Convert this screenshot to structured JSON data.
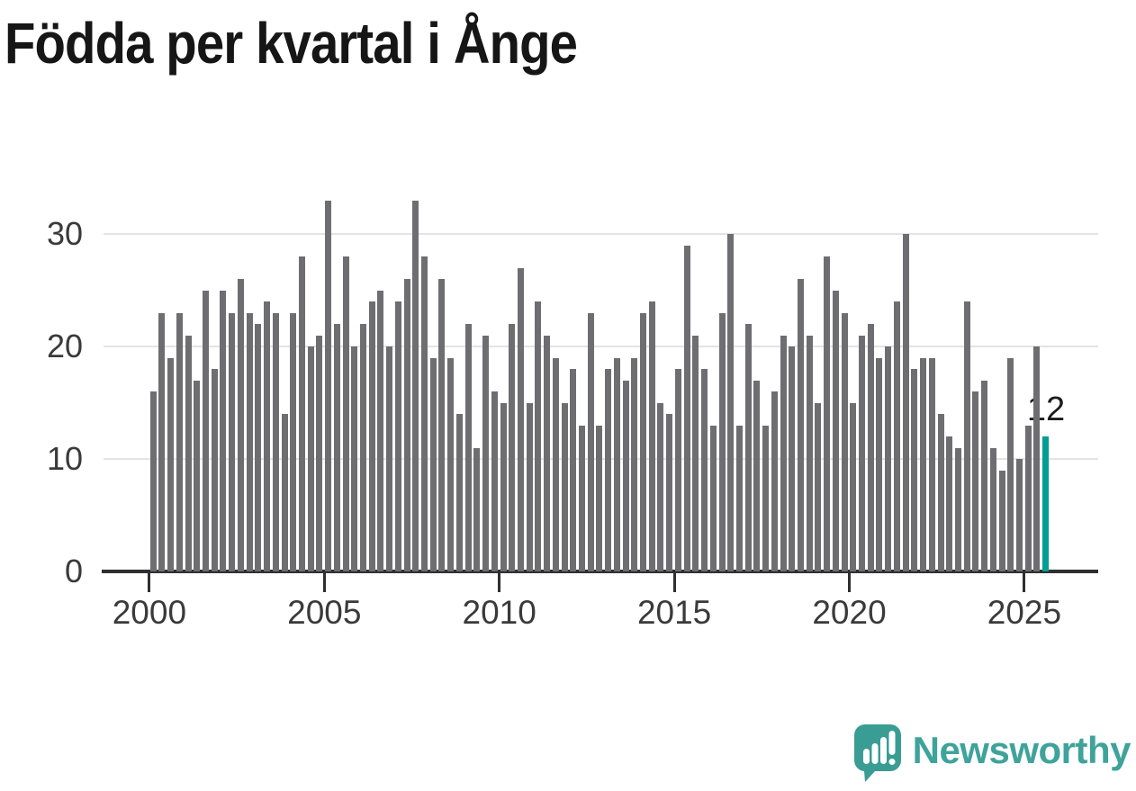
{
  "title": "Födda per kvartal i Ånge",
  "annotation": {
    "label": "12"
  },
  "logo": {
    "text": "Newsworthy"
  },
  "colors": {
    "background": "#FFFFFF",
    "bar": "#6E6E72",
    "highlight": "#009E94",
    "grid": "#E3E3E3",
    "axis": "#2F2F2F",
    "axis_text": "#3A3A3A",
    "title_text": "#161616",
    "annotation_text": "#1B1B1B",
    "logo_teal": "#3EA39B"
  },
  "chart_data": {
    "type": "bar",
    "title": "Födda per kvartal i Ånge",
    "x_unit": "quarter",
    "x_start": "2000 Q1",
    "x_end": "2025 Q3",
    "values": [
      16,
      23,
      19,
      23,
      21,
      17,
      25,
      18,
      25,
      23,
      26,
      23,
      22,
      24,
      23,
      14,
      23,
      28,
      20,
      21,
      33,
      22,
      28,
      20,
      22,
      24,
      25,
      20,
      24,
      26,
      33,
      28,
      19,
      26,
      19,
      14,
      22,
      11,
      21,
      16,
      15,
      22,
      27,
      15,
      24,
      21,
      19,
      15,
      18,
      13,
      23,
      13,
      18,
      19,
      17,
      19,
      23,
      24,
      15,
      14,
      18,
      29,
      21,
      18,
      13,
      23,
      30,
      13,
      22,
      17,
      13,
      16,
      21,
      20,
      26,
      21,
      15,
      28,
      25,
      23,
      15,
      21,
      22,
      19,
      20,
      24,
      30,
      18,
      19,
      19,
      14,
      12,
      11,
      24,
      16,
      17,
      11,
      9,
      19,
      10,
      13,
      20,
      12
    ],
    "highlighted_last_bar": {
      "quarter": "2025 Q3",
      "value": 12
    },
    "x_tick_labels": [
      "2000",
      "2005",
      "2010",
      "2015",
      "2020",
      "2025"
    ],
    "y_ticks": [
      0,
      10,
      20,
      30
    ],
    "ylim": [
      0,
      34
    ],
    "grid": true,
    "legend": "none"
  }
}
